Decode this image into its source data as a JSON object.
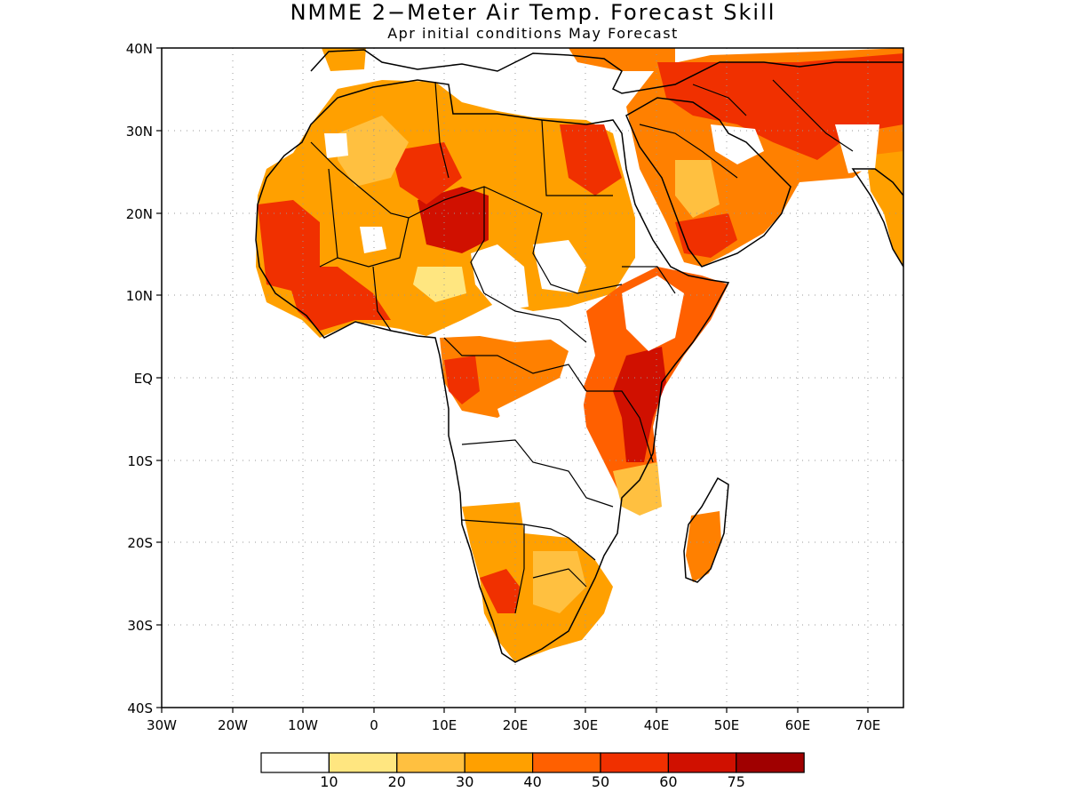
{
  "map": {
    "title": "NMME 2−Meter Air Temp. Forecast Skill",
    "subtitle": "Apr initial conditions  May Forecast",
    "y_ticks": [
      "40N",
      "30N",
      "20N",
      "10N",
      "EQ",
      "10S",
      "20S",
      "30S",
      "40S"
    ],
    "x_ticks": [
      "30W",
      "20W",
      "10W",
      "0",
      "10E",
      "20E",
      "30E",
      "40E",
      "50E",
      "60E",
      "70E"
    ],
    "colorbar": {
      "colors": [
        "#ffffff",
        "#ffe680",
        "#ffc040",
        "#ffa000",
        "#ff6000",
        "#f03000",
        "#d01000",
        "#a00000"
      ],
      "labels": [
        "10",
        "20",
        "30",
        "40",
        "50",
        "60",
        "75"
      ]
    }
  }
}
